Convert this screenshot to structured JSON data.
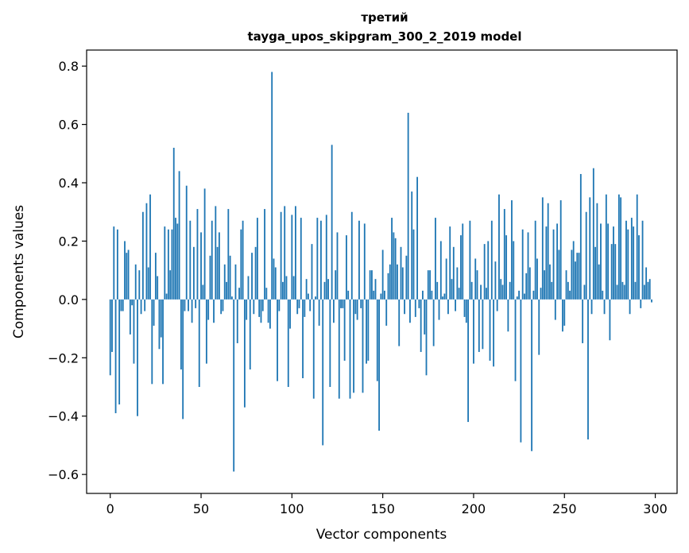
{
  "chart_data": {
    "type": "bar",
    "title": "третий",
    "subtitle": "tayga_upos_skipgram_300_2_2019 model",
    "xlabel": "Vector components",
    "ylabel": "Components values",
    "xlim": [
      -13,
      312
    ],
    "ylim": [
      -0.665,
      0.855
    ],
    "xticks": [
      0,
      50,
      100,
      150,
      200,
      250,
      300
    ],
    "xtick_labels": [
      "0",
      "50",
      "100",
      "150",
      "200",
      "250",
      "300"
    ],
    "yticks": [
      -0.6,
      -0.4,
      -0.2,
      0.0,
      0.2,
      0.4,
      0.6,
      0.8
    ],
    "ytick_labels": [
      "−0.6",
      "−0.4",
      "−0.2",
      "0.0",
      "0.2",
      "0.4",
      "0.6",
      "0.8"
    ],
    "grid": false,
    "color": "#1f77b4",
    "values": [
      -0.26,
      -0.18,
      0.25,
      -0.39,
      0.24,
      -0.36,
      -0.04,
      -0.04,
      0.2,
      0.16,
      0.17,
      -0.12,
      -0.02,
      -0.22,
      0.12,
      -0.4,
      0.1,
      -0.05,
      0.3,
      -0.04,
      0.33,
      0.11,
      0.36,
      -0.29,
      -0.09,
      0.16,
      0.08,
      -0.17,
      -0.13,
      -0.29,
      0.25,
      0.02,
      0.24,
      0.1,
      0.24,
      0.52,
      0.28,
      0.26,
      0.44,
      -0.24,
      -0.41,
      -0.04,
      0.39,
      -0.04,
      0.27,
      -0.08,
      0.18,
      -0.03,
      0.31,
      -0.3,
      0.23,
      0.05,
      0.38,
      -0.22,
      -0.07,
      0.15,
      0.27,
      -0.08,
      0.32,
      0.18,
      0.23,
      -0.05,
      -0.04,
      0.12,
      0.06,
      0.31,
      0.15,
      0.01,
      -0.59,
      0.12,
      -0.15,
      0.04,
      0.24,
      0.27,
      -0.37,
      -0.07,
      0.08,
      -0.24,
      0.16,
      -0.05,
      0.18,
      0.28,
      -0.06,
      -0.08,
      -0.04,
      0.31,
      0.04,
      -0.08,
      -0.1,
      0.78,
      0.14,
      0.11,
      -0.28,
      -0.04,
      0.3,
      0.06,
      0.32,
      0.08,
      -0.3,
      -0.1,
      0.29,
      0.08,
      0.32,
      -0.05,
      -0.03,
      0.28,
      -0.27,
      -0.06,
      0.07,
      0.02,
      -0.04,
      0.19,
      -0.34,
      0.01,
      0.28,
      -0.09,
      0.27,
      -0.5,
      0.06,
      0.29,
      0.07,
      -0.3,
      0.53,
      -0.08,
      0.1,
      0.23,
      -0.34,
      -0.03,
      -0.03,
      -0.21,
      0.22,
      0.03,
      -0.34,
      0.3,
      -0.32,
      -0.05,
      -0.07,
      0.27,
      -0.03,
      -0.32,
      0.26,
      -0.22,
      -0.21,
      0.1,
      0.1,
      0.03,
      0.07,
      -0.28,
      -0.45,
      0.02,
      0.17,
      0.03,
      -0.09,
      0.09,
      0.12,
      0.28,
      0.23,
      0.21,
      0.12,
      -0.16,
      0.18,
      0.11,
      -0.05,
      0.15,
      0.64,
      -0.08,
      0.37,
      0.24,
      -0.06,
      0.42,
      -0.03,
      -0.18,
      0.03,
      -0.12,
      -0.26,
      0.1,
      0.1,
      0.03,
      -0.16,
      0.28,
      0.06,
      -0.07,
      0.2,
      0.01,
      0.02,
      0.14,
      -0.05,
      0.25,
      0.07,
      0.18,
      -0.04,
      0.11,
      0.04,
      0.22,
      0.26,
      -0.06,
      -0.08,
      -0.42,
      0.27,
      0.06,
      -0.22,
      0.14,
      0.1,
      -0.18,
      0.05,
      -0.17,
      0.19,
      0.04,
      0.2,
      -0.21,
      0.27,
      -0.23,
      0.13,
      -0.04,
      0.36,
      0.07,
      0.05,
      0.31,
      0.22,
      -0.11,
      0.06,
      0.34,
      0.2,
      -0.28,
      0.01,
      0.03,
      -0.49,
      0.24,
      0.02,
      0.09,
      0.23,
      0.11,
      -0.52,
      0.03,
      0.27,
      0.14,
      -0.19,
      0.04,
      0.35,
      0.1,
      0.25,
      0.33,
      0.12,
      0.06,
      0.24,
      -0.07,
      0.26,
      0.17,
      0.34,
      -0.11,
      -0.09,
      0.1,
      0.06,
      0.03,
      0.17,
      0.2,
      0.13,
      0.16,
      0.16,
      0.43,
      -0.15,
      0.05,
      0.3,
      -0.48,
      0.35,
      -0.05,
      0.45,
      0.18,
      0.33,
      0.12,
      0.26,
      0.03,
      -0.05,
      0.36,
      0.26,
      -0.14,
      0.19,
      0.25,
      0.19,
      0.05,
      0.36,
      0.35,
      0.06,
      0.05,
      0.27,
      0.24,
      -0.05,
      0.28,
      0.25,
      0.06,
      0.36,
      0.22,
      -0.03,
      0.27,
      0.05,
      0.11,
      0.06,
      0.07,
      -0.01
    ]
  }
}
